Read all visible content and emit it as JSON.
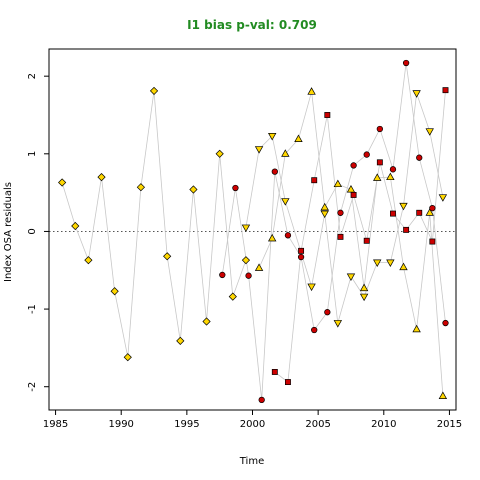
{
  "chart_data": {
    "type": "scatter",
    "title": "I1 bias p-val: 0.709",
    "xlabel": "Time",
    "ylabel": "Index OSA residuals",
    "xlim": [
      1984.5,
      2015.5
    ],
    "ylim": [
      -2.3,
      2.35
    ],
    "xticks": [
      1985,
      1990,
      1995,
      2000,
      2005,
      2010,
      2015
    ],
    "yticks": [
      -2,
      -1,
      0,
      1,
      2
    ],
    "reference_line": 0,
    "colors": {
      "title": "#228B22",
      "fill_yellow": "#FFD700",
      "fill_red": "#CC0000",
      "connector": "#C8C8C8",
      "reference": "#555555"
    },
    "series": [
      {
        "marker": "diamond",
        "color": "#FFD700",
        "points": [
          [
            1985.5,
            0.63
          ],
          [
            1986.5,
            0.07
          ],
          [
            1987.5,
            -0.37
          ],
          [
            1988.5,
            0.7
          ],
          [
            1989.5,
            -0.77
          ],
          [
            1990.5,
            -1.62
          ],
          [
            1991.5,
            0.57
          ],
          [
            1992.5,
            1.81
          ],
          [
            1993.5,
            -0.32
          ],
          [
            1994.5,
            -1.41
          ],
          [
            1995.5,
            0.54
          ],
          [
            1996.5,
            -1.16
          ],
          [
            1997.5,
            1.0
          ],
          [
            1998.5,
            -0.84
          ],
          [
            1999.5,
            -0.37
          ]
        ]
      },
      {
        "marker": "triangle-down",
        "color": "#FFD700",
        "points": [
          [
            1999.5,
            0.05
          ],
          [
            2000.5,
            1.06
          ],
          [
            2001.5,
            1.23
          ],
          [
            2002.5,
            0.39
          ],
          [
            2004.5,
            -0.71
          ],
          [
            2005.5,
            0.23
          ],
          [
            2006.5,
            -1.18
          ],
          [
            2007.5,
            -0.58
          ],
          [
            2008.5,
            -0.84
          ],
          [
            2009.5,
            -0.4
          ],
          [
            2010.5,
            -0.4
          ],
          [
            2011.5,
            0.33
          ],
          [
            2012.5,
            1.78
          ],
          [
            2013.5,
            1.29
          ],
          [
            2014.5,
            0.44
          ]
        ]
      },
      {
        "marker": "triangle-up",
        "color": "#FFD700",
        "points": [
          [
            2000.5,
            -0.47
          ],
          [
            2001.5,
            -0.09
          ],
          [
            2002.5,
            1.0
          ],
          [
            2003.5,
            1.19
          ],
          [
            2004.5,
            1.8
          ],
          [
            2005.5,
            0.31
          ],
          [
            2006.5,
            0.61
          ],
          [
            2007.5,
            0.54
          ],
          [
            2008.5,
            -0.73
          ],
          [
            2009.5,
            0.69
          ],
          [
            2010.5,
            0.7
          ],
          [
            2011.5,
            -0.46
          ],
          [
            2012.5,
            -1.26
          ],
          [
            2013.5,
            0.24
          ],
          [
            2014.5,
            -2.12
          ]
        ]
      },
      {
        "marker": "circle",
        "color": "#CC0000",
        "points": [
          [
            1997.7,
            -0.56
          ],
          [
            1998.7,
            0.56
          ],
          [
            1999.7,
            -0.57
          ],
          [
            2000.7,
            -2.17
          ],
          [
            2001.7,
            0.77
          ],
          [
            2002.7,
            -0.05
          ],
          [
            2003.7,
            -0.33
          ],
          [
            2004.7,
            -1.27
          ],
          [
            2005.7,
            -1.04
          ],
          [
            2006.7,
            0.24
          ],
          [
            2007.7,
            0.85
          ],
          [
            2008.7,
            0.99
          ],
          [
            2009.7,
            1.32
          ],
          [
            2010.7,
            0.8
          ],
          [
            2011.7,
            2.17
          ],
          [
            2012.7,
            0.95
          ],
          [
            2013.7,
            0.3
          ],
          [
            2014.7,
            -1.18
          ]
        ]
      },
      {
        "marker": "square",
        "color": "#CC0000",
        "points": [
          [
            2001.7,
            -1.81
          ],
          [
            2002.7,
            -1.94
          ],
          [
            2003.7,
            -0.25
          ],
          [
            2004.7,
            0.66
          ],
          [
            2005.7,
            1.5
          ],
          [
            2006.7,
            -0.07
          ],
          [
            2007.7,
            0.47
          ],
          [
            2008.7,
            -0.12
          ],
          [
            2009.7,
            0.89
          ],
          [
            2010.7,
            0.23
          ],
          [
            2011.7,
            0.02
          ],
          [
            2012.7,
            0.24
          ],
          [
            2013.7,
            -0.13
          ],
          [
            2014.7,
            1.82
          ]
        ]
      }
    ]
  }
}
